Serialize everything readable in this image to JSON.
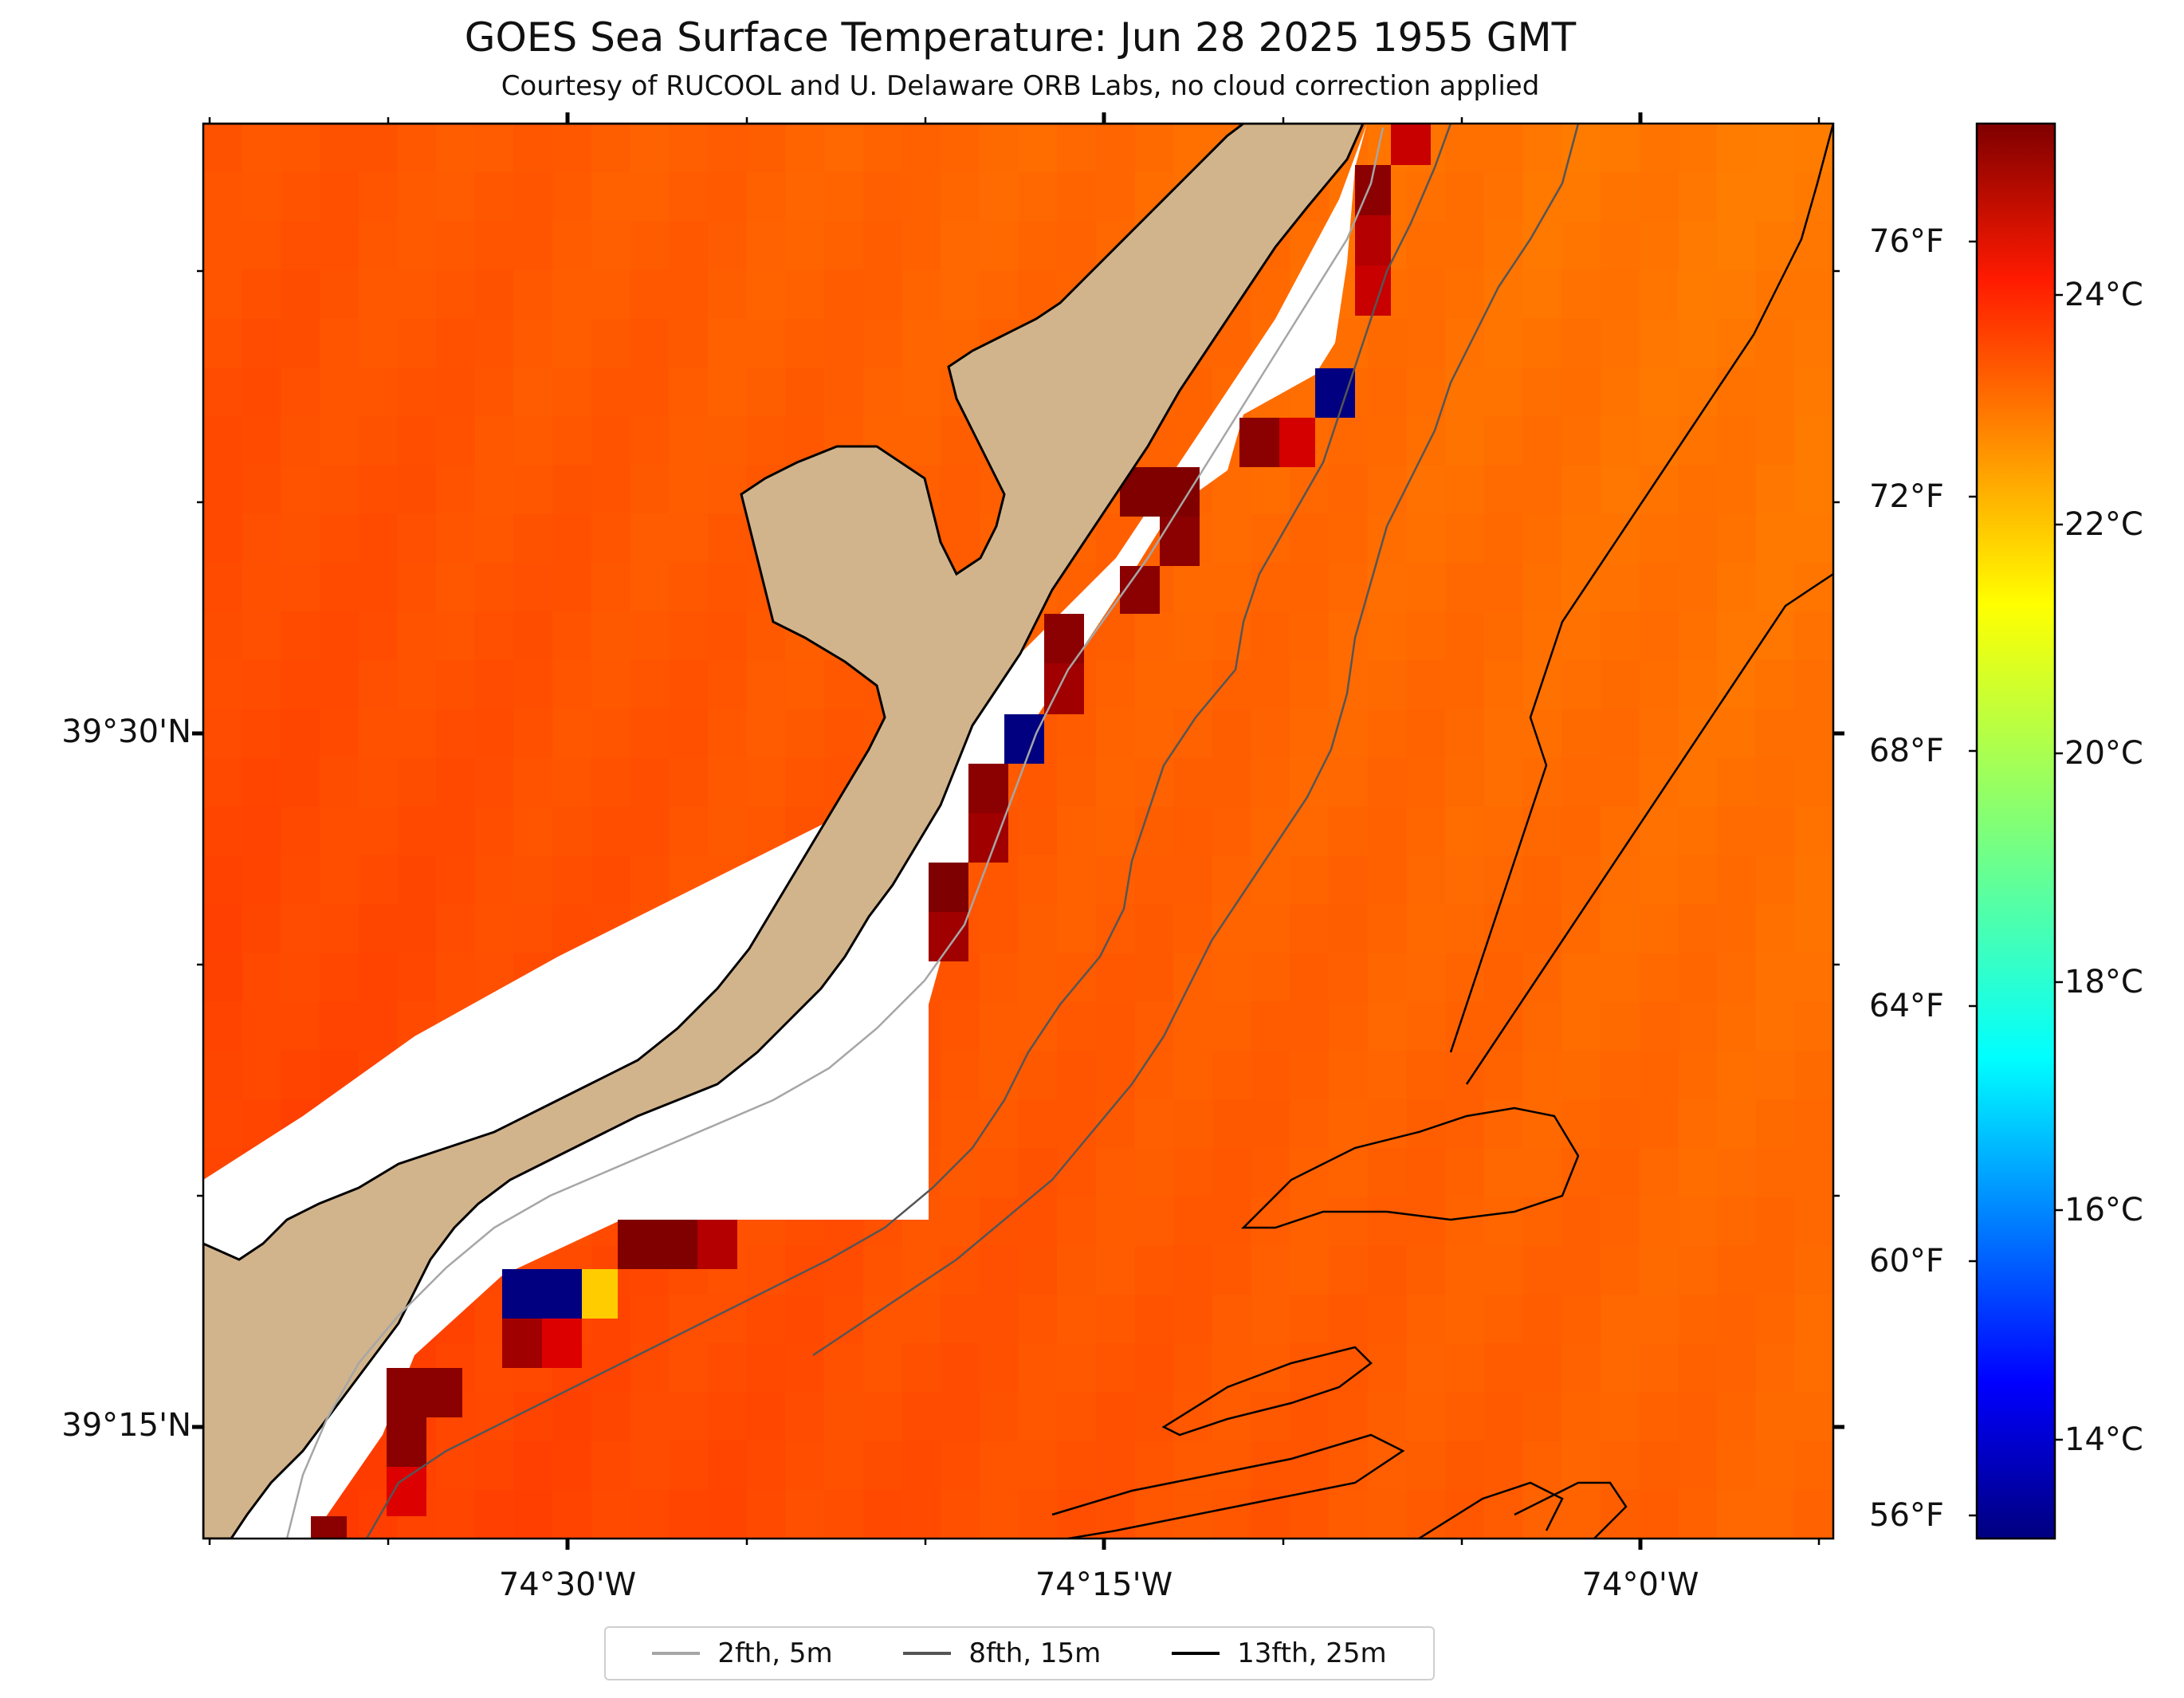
{
  "title": "GOES Sea Surface Temperature: Jun 28 2025 1955 GMT",
  "subtitle": "Courtesy of RUCOOL and U. Delaware ORB Labs, no cloud correction applied",
  "map": {
    "lat_labels": [
      "39°30'N",
      "39°15'N"
    ],
    "lon_labels": [
      "74°30'W",
      "74°15'W",
      "74°0'W"
    ],
    "land_color": "#d2b48c",
    "coastline_color": "#000000"
  },
  "colorbar": {
    "colormap": "jet",
    "fahrenheit_labels": [
      "76°F",
      "72°F",
      "68°F",
      "64°F",
      "60°F",
      "56°F"
    ],
    "celsius_labels": [
      "24°C",
      "22°C",
      "20°C",
      "18°C",
      "16°C",
      "14°C"
    ]
  },
  "legend": {
    "items": [
      {
        "label": "2fth, 5m",
        "color": "#a6a6a6"
      },
      {
        "label": "8fth, 15m",
        "color": "#555555"
      },
      {
        "label": "13fth, 25m",
        "color": "#000000"
      }
    ]
  }
}
